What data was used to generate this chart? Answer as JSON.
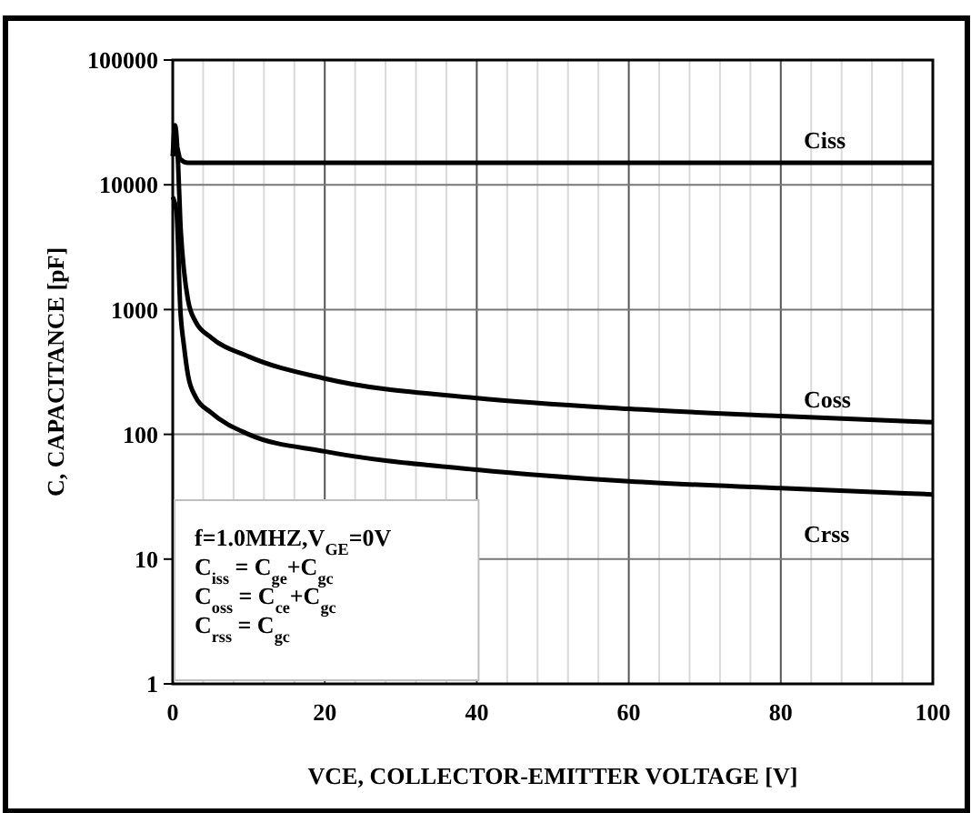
{
  "chart_data": {
    "type": "line",
    "xlabel": "VCE, COLLECTOR-EMITTER  VOLTAGE [V]",
    "ylabel": "C, CAPACITANCE [pF]",
    "log": "y",
    "grid": true,
    "marker": "none",
    "line_style": "solid",
    "xlim": [
      0,
      100
    ],
    "ylim": [
      1,
      100000
    ],
    "xticks": [
      0,
      {
        "value": 4,
        "label": null
      },
      {
        "value": 8,
        "label": null
      },
      {
        "value": 12,
        "label": null
      },
      {
        "value": 16,
        "label": null
      },
      20,
      {
        "value": 24,
        "label": null
      },
      {
        "value": 28,
        "label": null
      },
      {
        "value": 32,
        "label": null
      },
      {
        "value": 36,
        "label": null
      },
      40,
      {
        "value": 44,
        "label": null
      },
      {
        "value": 48,
        "label": null
      },
      {
        "value": 52,
        "label": null
      },
      {
        "value": 56,
        "label": null
      },
      60,
      {
        "value": 64,
        "label": null
      },
      {
        "value": 68,
        "label": null
      },
      {
        "value": 72,
        "label": null
      },
      {
        "value": 76,
        "label": null
      },
      80,
      {
        "value": 84,
        "label": null
      },
      {
        "value": 88,
        "label": null
      },
      {
        "value": 92,
        "label": null
      },
      {
        "value": 96,
        "label": null
      },
      100
    ],
    "yticks": [
      1,
      10,
      100,
      1000,
      10000,
      100000
    ],
    "series": [
      {
        "name": "Ciss",
        "color": "#000000",
        "x": [
          0,
          0.5,
          1,
          2,
          5,
          100
        ],
        "values": [
          17000,
          20000,
          16000,
          15000,
          15000,
          15000
        ]
      },
      {
        "name": "Coss",
        "color": "#000000",
        "x": [
          0,
          0.3,
          0.7,
          1,
          1.5,
          2,
          3,
          5,
          10,
          20,
          40,
          60,
          80,
          100
        ],
        "values": [
          17000,
          30000,
          15000,
          5000,
          2000,
          1200,
          800,
          600,
          420,
          280,
          195,
          160,
          140,
          125
        ]
      },
      {
        "name": "Crss",
        "color": "#000000",
        "x": [
          0,
          0.5,
          1,
          1.5,
          2,
          3,
          5,
          10,
          20,
          40,
          60,
          80,
          100
        ],
        "values": [
          8000,
          6000,
          1000,
          500,
          300,
          200,
          150,
          100,
          73,
          52,
          42,
          37,
          33
        ]
      }
    ],
    "annotations": [
      "f=1.0MHZ,V$_{GE}$=0V",
      "C$_{iss}$ = C$_{ge}$+C$_{gc}$",
      "C$_{oss}$ = C$_{ce}$+C$_{gc}$",
      "C$_{rss}$ = C$_{gc}$"
    ]
  }
}
